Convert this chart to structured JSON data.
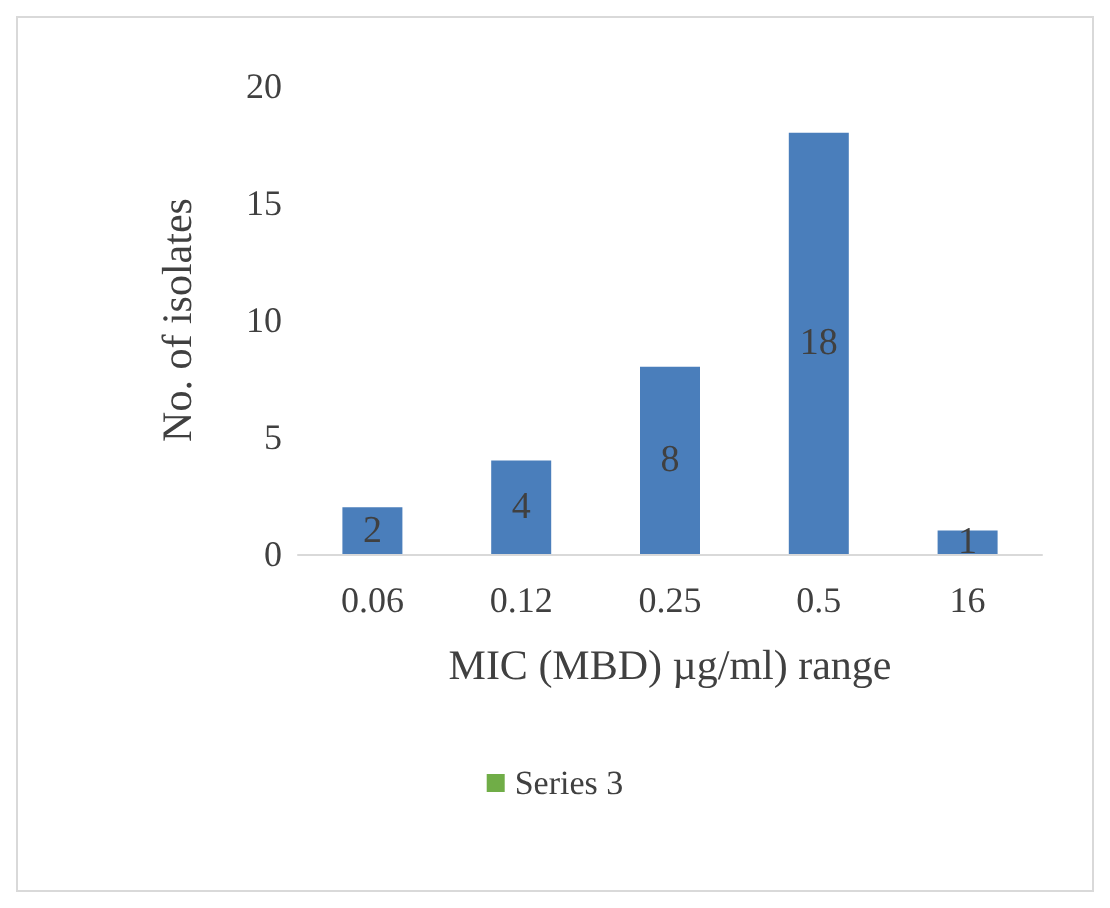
{
  "chart_data": {
    "type": "bar",
    "xlabel": "MIC (MBD) µg/ml) range",
    "ylabel": "No. of isolates",
    "categories": [
      "0.06",
      "0.12",
      "0.25",
      "0.5",
      "16"
    ],
    "series": [
      {
        "color": "#4a7ebb",
        "values": [
          2,
          4,
          8,
          18,
          1
        ]
      },
      {
        "name": "Series 3",
        "color": "#70ad47",
        "values": [
          null,
          null,
          null,
          null,
          null
        ]
      }
    ],
    "ylim": [
      0,
      20
    ],
    "yticks": [
      0,
      5,
      10,
      15,
      20
    ],
    "grid": false,
    "legend": "bottom",
    "data_labels": true
  }
}
